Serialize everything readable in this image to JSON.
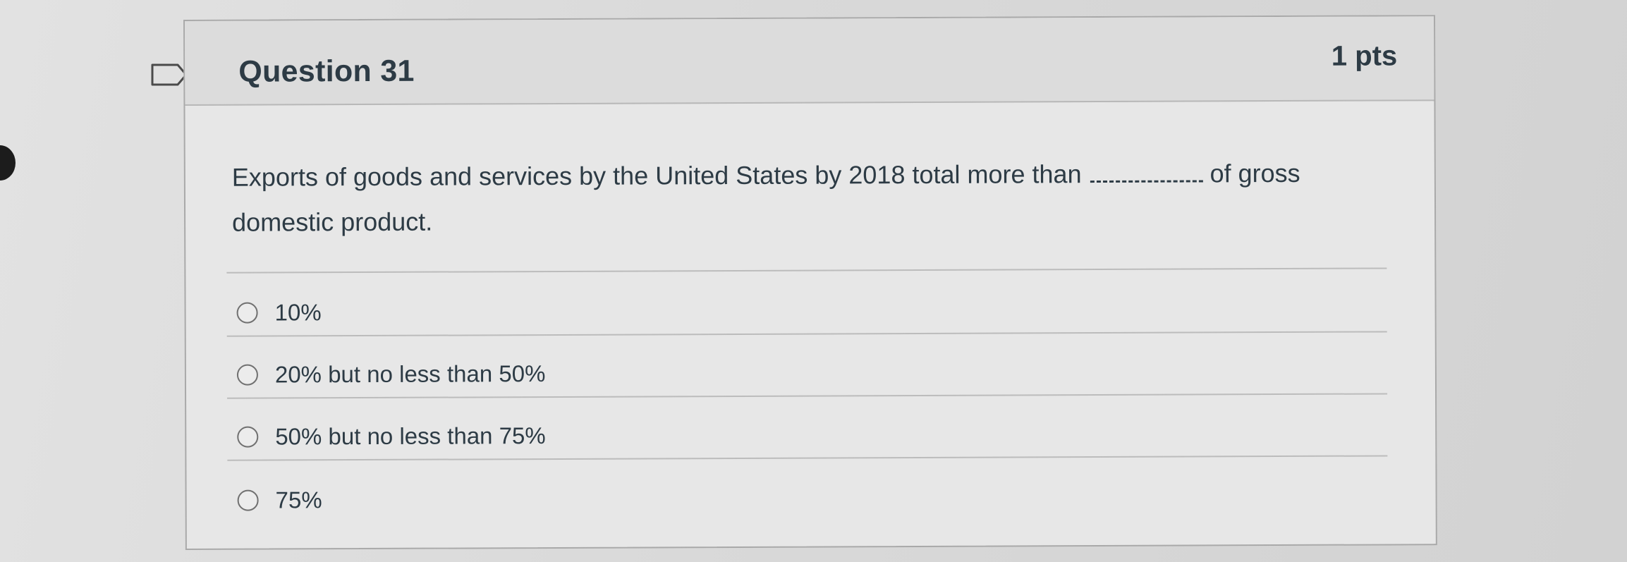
{
  "question": {
    "title": "Question 31",
    "points": "1 pts",
    "text_before_blank": "Exports of goods and services by the United States by 2018 total more than",
    "text_after_blank": "of gross domestic product.",
    "flag_icon": "bookmark-flag-icon"
  },
  "answers": [
    {
      "label": "10%",
      "selected": false
    },
    {
      "label": "20% but no less than 50%",
      "selected": false
    },
    {
      "label": "50% but no less than 75%",
      "selected": false
    },
    {
      "label": "75%",
      "selected": false
    }
  ]
}
